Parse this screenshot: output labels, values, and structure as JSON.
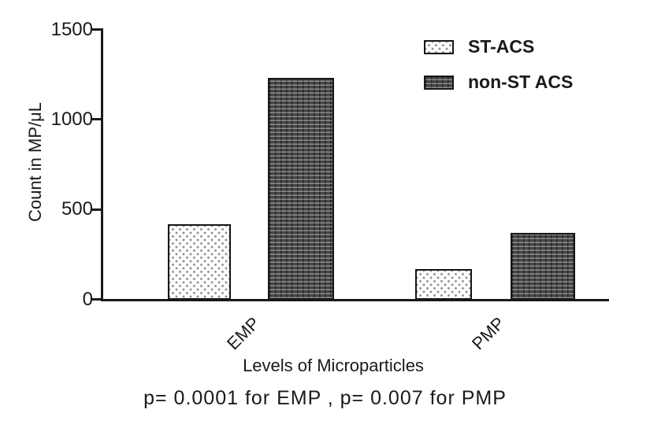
{
  "figure": {
    "y_axis": {
      "label": "Count in MP/μL",
      "ticks": [
        "1500",
        "1000",
        "500",
        "0"
      ]
    },
    "x_axis": {
      "label": "Levels of Microparticles",
      "categories": [
        "EMP",
        "PMP"
      ]
    },
    "legend": {
      "items": [
        {
          "label": "ST-ACS",
          "swatch": "dotted-light"
        },
        {
          "label": "non-ST ACS",
          "swatch": "hatched-dark"
        }
      ]
    },
    "annotation": "p= 0.0001 for EMP , p= 0.007 for PMP",
    "colors": {
      "axis": "#1a1a1a",
      "text": "#1a1a1a",
      "bar_light_bg": "#fdfdfd",
      "bar_light_dot": "#8f8f8f",
      "bar_dark_bg": "#474747"
    }
  },
  "chart_data": {
    "type": "bar",
    "categories": [
      "EMP",
      "PMP"
    ],
    "series": [
      {
        "name": "ST-ACS",
        "values": [
          420,
          170
        ]
      },
      {
        "name": "non-ST ACS",
        "values": [
          1230,
          370
        ]
      }
    ],
    "title": "",
    "xlabel": "Levels of Microparticles",
    "ylabel": "Count in MP/μL",
    "ylim": [
      0,
      1500
    ],
    "yticks": [
      0,
      500,
      1000,
      1500
    ],
    "grid": false,
    "legend_position": "top-right",
    "annotation": "p= 0.0001 for EMP , p= 0.007 for PMP",
    "p_values": {
      "EMP": 0.0001,
      "PMP": 0.007
    }
  }
}
